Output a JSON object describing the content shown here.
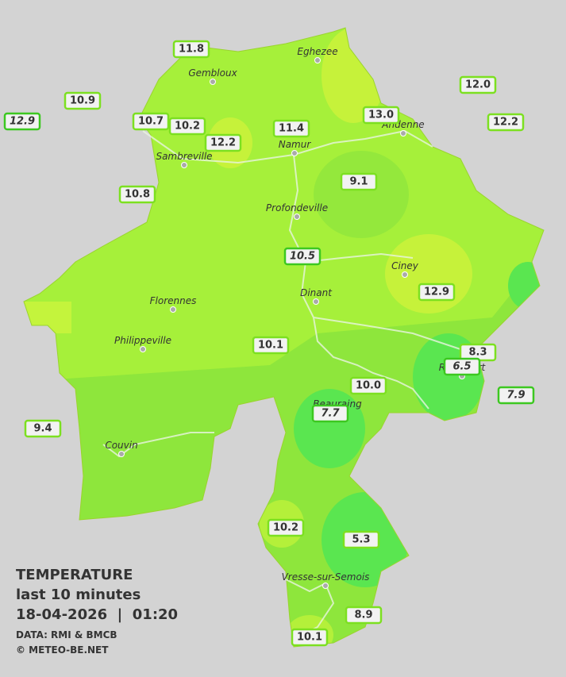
{
  "map": {
    "cities": [
      "Eghezee",
      "Gembloux",
      "Andenne",
      "Namur",
      "Sambreville",
      "Profondeville",
      "Ciney",
      "Dinant",
      "Florennes",
      "Philippeville",
      "Rochefort",
      "Beauraing",
      "Couvin",
      "Vresse-sur-Semois"
    ],
    "stations": [
      "11.8",
      "10.9",
      "12.9",
      "10.7",
      "10.2",
      "12.2",
      "11.4",
      "13.0",
      "12.0",
      "12.2",
      "10.8",
      "9.1",
      "10.5",
      "12.9",
      "10.1",
      "8.3",
      "6.5",
      "10.0",
      "7.9",
      "7.7",
      "9.4",
      "10.2",
      "5.3",
      "8.9",
      "10.1"
    ],
    "legend": {
      "title": "TEMPERATURE",
      "subtitle": "last 10 minutes",
      "datetime": "18-04-2026  |  01:20",
      "source": "DATA: RMI & BMCB",
      "copyright": "© METEO-BE.NET"
    }
  }
}
